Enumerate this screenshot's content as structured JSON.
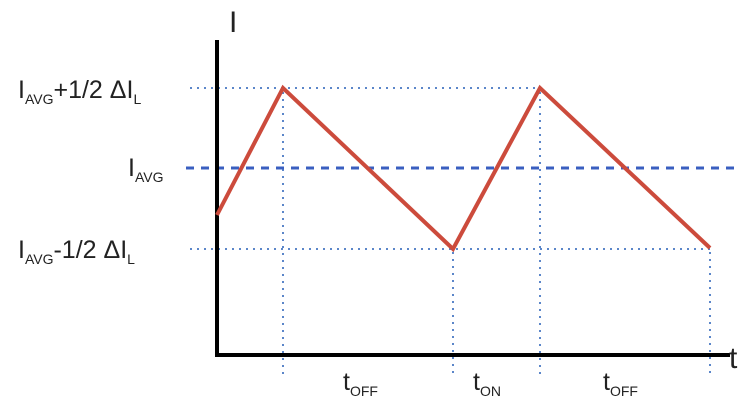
{
  "colors": {
    "waveform": "#cc4b3c",
    "avg_line": "#3a5fc0",
    "guide_lines": "#5b86c9",
    "axes": "#000000"
  },
  "axes": {
    "y_label": "I",
    "x_label": "t"
  },
  "levels": {
    "upper": {
      "main": "I",
      "sub": "AVG",
      "mid": "+1/2 ΔI",
      "sub2": "L"
    },
    "avg": {
      "main": "I",
      "sub": "AVG"
    },
    "lower": {
      "main": "I",
      "sub": "AVG",
      "mid": "-1/2 ΔI",
      "sub2": "L"
    }
  },
  "intervals": [
    {
      "main": "t",
      "sub": "OFF"
    },
    {
      "main": "t",
      "sub": "ON"
    },
    {
      "main": "t",
      "sub": "OFF"
    }
  ]
}
